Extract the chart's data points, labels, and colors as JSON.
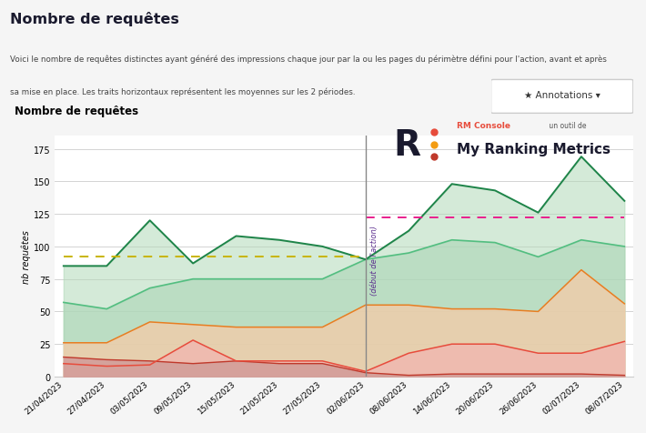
{
  "page_title": "Nombre de requêtes",
  "page_desc_line1": "Voici le nombre de requêtes distinctes ayant généré des impressions chaque jour par la ou les pages du périmètre défini pour l'action, avant et après",
  "page_desc_line2": "sa mise en place. Les traits horizontaux représentent les moyennes sur les 2 périodes.",
  "chart_title": "Nombre de requêtes",
  "ylabel": "nb requêtes",
  "dates": [
    "21/04/2023",
    "27/04/2023",
    "03/05/2023",
    "09/05/2023",
    "15/05/2023",
    "21/05/2023",
    "27/05/2023",
    "02/06/2023",
    "08/06/2023",
    "14/06/2023",
    "20/06/2023",
    "26/06/2023",
    "02/07/2023",
    "08/07/2023"
  ],
  "action_date_idx": 7,
  "action_label": "(début de l'action)",
  "ylim": [
    0,
    185
  ],
  "yticks": [
    0,
    25,
    50,
    75,
    100,
    125,
    150,
    175
  ],
  "moy_A": 92,
  "moy_B": 122,
  "s101_values": [
    15,
    13,
    12,
    10,
    12,
    10,
    10,
    3,
    1,
    2,
    2,
    2,
    2,
    1
  ],
  "s21_values": [
    10,
    8,
    9,
    28,
    12,
    12,
    12,
    4,
    18,
    25,
    25,
    18,
    18,
    27
  ],
  "s11_values": [
    26,
    26,
    42,
    40,
    38,
    38,
    38,
    55,
    55,
    52,
    52,
    50,
    82,
    56
  ],
  "s4_values": [
    57,
    52,
    68,
    75,
    75,
    75,
    75,
    90,
    95,
    105,
    103,
    92,
    105,
    100
  ],
  "s1_values": [
    85,
    85,
    120,
    87,
    108,
    105,
    100,
    90,
    112,
    148,
    143,
    126,
    169,
    135
  ],
  "s101_fill": "#d4a09a",
  "s21_fill": "#f0b8b0",
  "s11_fill": "#f5cba7",
  "s4_fill": "#aed6b8",
  "s1_fill": "#b2d9b8",
  "s101_line": "#c0392b",
  "s21_line": "#e74c3c",
  "s11_line": "#e67e22",
  "s4_line": "#52be80",
  "s1_line": "#1e8449",
  "moy_A_color": "#c8b400",
  "moy_B_color": "#e91e8c",
  "vline_color": "#888888",
  "action_text_color": "#5b2d8e",
  "bg_outer": "#f5f5f5",
  "bg_chart_box": "#ffffff",
  "bg_chart": "#ffffff",
  "grid_color": "#cccccc",
  "title_color": "#1a1a2e",
  "desc_color": "#444444"
}
